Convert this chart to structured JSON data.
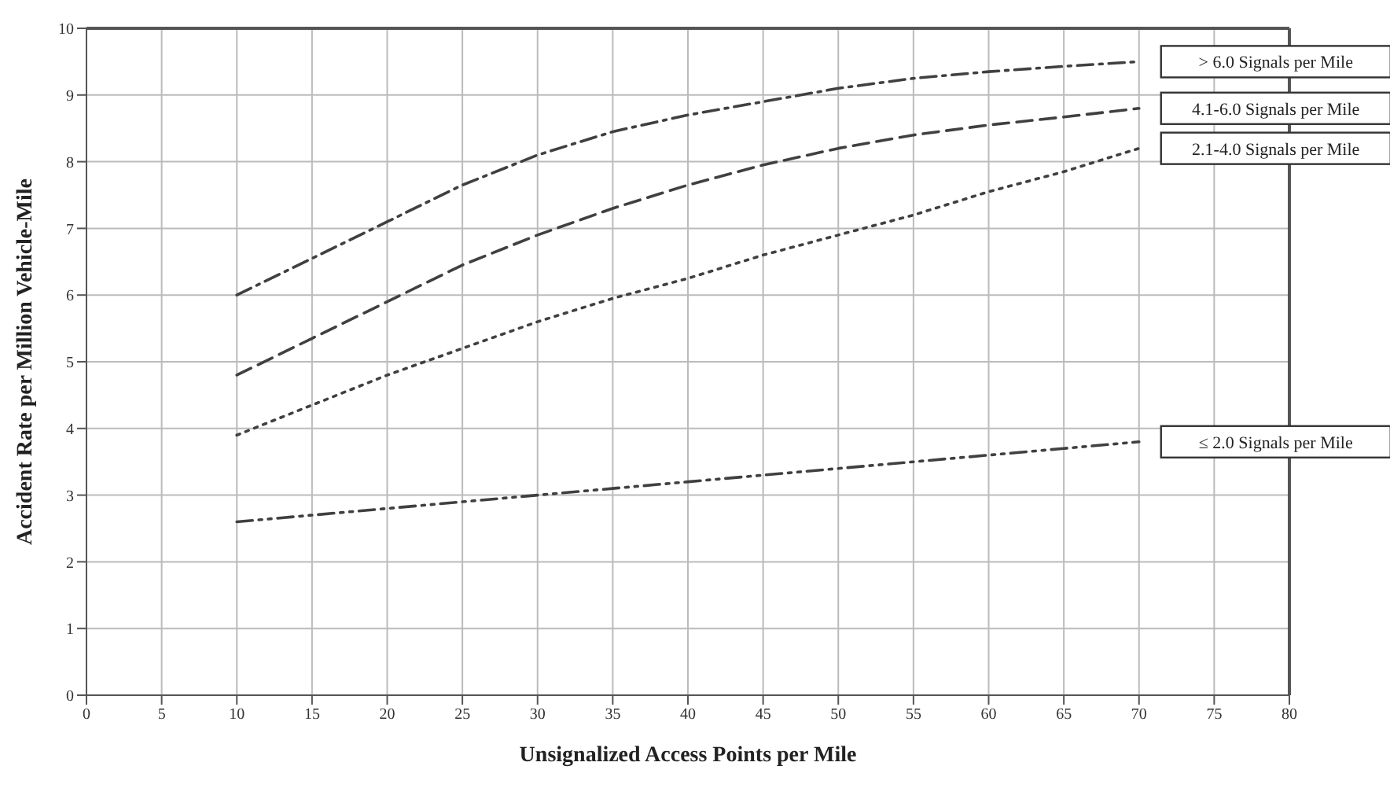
{
  "chart_data": {
    "type": "line",
    "xlabel": "Unsignalized Access Points per Mile",
    "ylabel": "Accident Rate per Million Vehicle-Mile",
    "x": [
      10,
      15,
      20,
      25,
      30,
      35,
      40,
      45,
      50,
      55,
      60,
      65,
      70
    ],
    "xlim": [
      0,
      80
    ],
    "xticks": [
      0,
      5,
      10,
      15,
      20,
      25,
      30,
      35,
      40,
      45,
      50,
      55,
      60,
      65,
      70,
      75,
      80
    ],
    "ylim": [
      0,
      10
    ],
    "yticks": [
      0,
      1,
      2,
      3,
      4,
      5,
      6,
      7,
      8,
      9,
      10
    ],
    "grid": true,
    "legend": false,
    "marker": "none",
    "series": [
      {
        "name": "> 6.0 Signals per Mile",
        "color": "#404040",
        "line_style": "dashdot",
        "values": [
          6.0,
          6.55,
          7.1,
          7.65,
          8.1,
          8.45,
          8.7,
          8.9,
          9.1,
          9.25,
          9.35,
          9.43,
          9.5
        ]
      },
      {
        "name": "4.1-6.0 Signals per Mile",
        "color": "#404040",
        "line_style": "dashed",
        "values": [
          4.8,
          5.35,
          5.9,
          6.45,
          6.9,
          7.3,
          7.65,
          7.95,
          8.2,
          8.4,
          8.55,
          8.67,
          8.8
        ]
      },
      {
        "name": "2.1-4.0 Signals per Mile",
        "color": "#404040",
        "line_style": "dotted",
        "values": [
          3.9,
          4.35,
          4.8,
          5.2,
          5.6,
          5.95,
          6.25,
          6.6,
          6.9,
          7.2,
          7.55,
          7.85,
          8.2
        ]
      },
      {
        "name": "≤ 2.0 Signals per Mile",
        "color": "#404040",
        "line_style": "dashdotdot",
        "values": [
          2.6,
          2.7,
          2.8,
          2.9,
          3.0,
          3.1,
          3.2,
          3.3,
          3.4,
          3.5,
          3.6,
          3.7,
          3.8
        ]
      }
    ]
  }
}
